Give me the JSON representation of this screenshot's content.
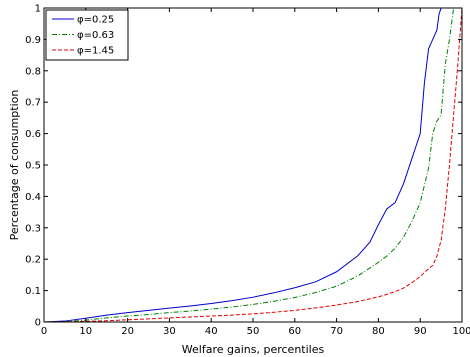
{
  "chart_data": {
    "type": "line",
    "xlabel": "Welfare gains, percentiles",
    "ylabel": "Percentage of consumption",
    "xlim": [
      0,
      100
    ],
    "ylim": [
      0,
      1
    ],
    "xticks": [
      0,
      10,
      20,
      30,
      40,
      50,
      60,
      70,
      80,
      90,
      100
    ],
    "yticks": [
      0,
      0.1,
      0.2,
      0.3,
      0.4,
      0.5,
      0.6,
      0.7,
      0.8,
      0.9,
      1
    ],
    "xtick_labels": [
      "0",
      "10",
      "20",
      "30",
      "40",
      "50",
      "60",
      "70",
      "80",
      "90",
      "100"
    ],
    "ytick_labels": [
      "0",
      "0.1",
      "0.2",
      "0.3",
      "0.4",
      "0.5",
      "0.6",
      "0.7",
      "0.8",
      "0.9",
      "1"
    ],
    "grid": false,
    "legend_position": "top-left",
    "series": [
      {
        "name": "φ=0.25",
        "color": "#0000cc",
        "dash": "solid",
        "x": [
          0,
          5,
          10,
          15,
          20,
          25,
          30,
          35,
          40,
          45,
          50,
          55,
          60,
          65,
          70,
          75,
          78,
          80,
          82,
          84,
          86,
          88,
          90,
          91,
          92,
          93,
          94,
          94.5,
          95
        ],
        "y": [
          0,
          0.003,
          0.012,
          0.022,
          0.03,
          0.037,
          0.044,
          0.051,
          0.059,
          0.068,
          0.079,
          0.093,
          0.109,
          0.128,
          0.16,
          0.21,
          0.255,
          0.31,
          0.36,
          0.38,
          0.44,
          0.52,
          0.6,
          0.76,
          0.87,
          0.9,
          0.93,
          0.98,
          1.0
        ]
      },
      {
        "name": "φ=0.63",
        "color": "#008000",
        "dash": "dashdot",
        "x": [
          0,
          5,
          10,
          15,
          20,
          25,
          30,
          35,
          40,
          45,
          50,
          55,
          60,
          65,
          70,
          75,
          80,
          82,
          84,
          86,
          88,
          90,
          92,
          93,
          94,
          95,
          96,
          97,
          97.5,
          98
        ],
        "y": [
          0,
          0.001,
          0.006,
          0.013,
          0.019,
          0.024,
          0.03,
          0.035,
          0.041,
          0.048,
          0.056,
          0.066,
          0.078,
          0.094,
          0.114,
          0.146,
          0.19,
          0.21,
          0.235,
          0.27,
          0.32,
          0.38,
          0.49,
          0.6,
          0.64,
          0.66,
          0.82,
          0.9,
          0.95,
          1.0
        ]
      },
      {
        "name": "φ=1.45",
        "color": "#e00000",
        "dash": "dashed",
        "x": [
          0,
          5,
          10,
          15,
          20,
          25,
          30,
          35,
          40,
          45,
          50,
          55,
          60,
          65,
          70,
          75,
          80,
          82,
          84,
          86,
          88,
          90,
          92,
          93,
          94,
          95,
          96,
          97,
          98,
          99,
          100
        ],
        "y": [
          0,
          0.0005,
          0.002,
          0.004,
          0.007,
          0.01,
          0.013,
          0.016,
          0.019,
          0.022,
          0.026,
          0.031,
          0.037,
          0.045,
          0.054,
          0.065,
          0.08,
          0.088,
          0.097,
          0.108,
          0.125,
          0.145,
          0.17,
          0.18,
          0.21,
          0.26,
          0.36,
          0.5,
          0.66,
          0.82,
          1.0
        ]
      }
    ]
  }
}
